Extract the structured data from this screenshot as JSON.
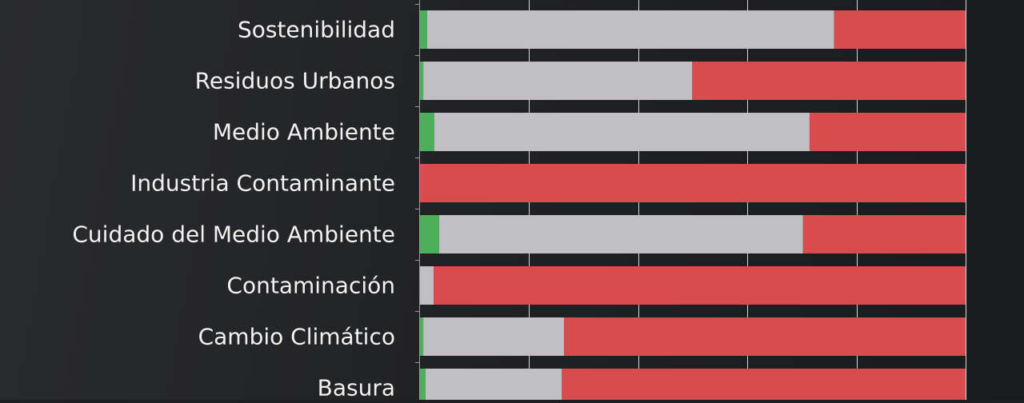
{
  "chart_data": {
    "type": "bar",
    "orientation": "horizontal",
    "stacked": true,
    "normalized": true,
    "categories": [
      "Sostenibilidad",
      "Residuos Urbanos",
      "Medio Ambiente",
      "Industria Contaminante",
      "Cuidado del Medio Ambiente",
      "Contaminación",
      "Cambio Climático",
      "Basura"
    ],
    "series": [
      {
        "color": "#4caf5a",
        "values": [
          1.3,
          0.6,
          2.6,
          0,
          3.5,
          0,
          0.6,
          1.0
        ]
      },
      {
        "color": "#c0bfc4",
        "values": [
          74.6,
          49.3,
          68.8,
          0,
          66.7,
          2.5,
          25.8,
          25.0
        ]
      },
      {
        "color": "#d84b4e",
        "values": [
          24.1,
          50.1,
          28.6,
          100,
          29.8,
          97.5,
          73.6,
          74.0
        ]
      }
    ],
    "xlim": [
      0,
      100
    ],
    "gridlines_at": [
      20,
      40,
      60,
      80,
      100
    ],
    "grid": true,
    "legend": "none"
  }
}
